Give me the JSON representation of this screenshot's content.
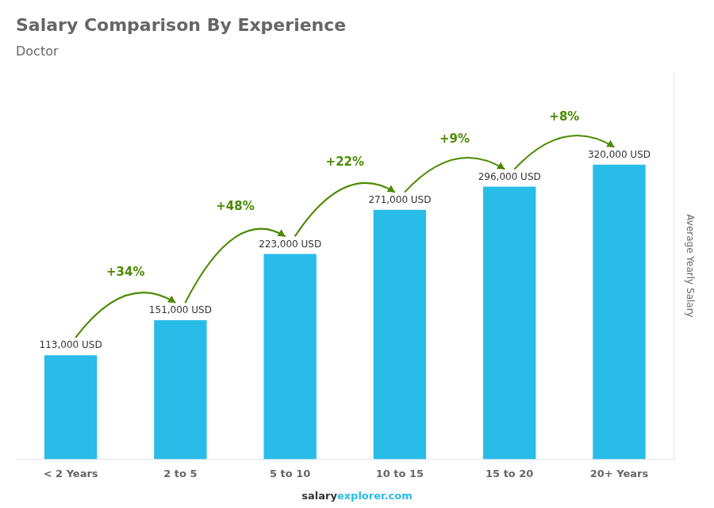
{
  "chart_data": {
    "type": "bar",
    "title": "Salary Comparison By Experience",
    "subtitle": "Doctor",
    "categories": [
      "< 2 Years",
      "2 to 5",
      "5 to 10",
      "10 to 15",
      "15 to 20",
      "20+ Years"
    ],
    "values": [
      113000,
      151000,
      223000,
      271000,
      296000,
      320000
    ],
    "value_labels": [
      "113,000 USD",
      "151,000 USD",
      "223,000 USD",
      "271,000 USD",
      "296,000 USD",
      "320,000 USD"
    ],
    "data_labels": true,
    "annotations": [
      "+34%",
      "+48%",
      "+22%",
      "+9%",
      "+8%"
    ],
    "y_label": "Average Yearly Salary",
    "source": [
      "salary",
      "explorer.com"
    ],
    "color": "#29bce8",
    "ylim": [
      0,
      420000
    ],
    "grid": false,
    "tick_labels": "x"
  }
}
